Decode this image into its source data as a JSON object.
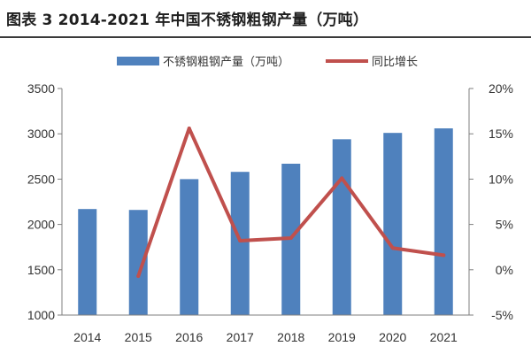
{
  "title": "图表 3 2014-2021 年中国不锈钢粗钢产量（万吨）",
  "colors": {
    "bar": "#4f81bd",
    "line": "#c0504d",
    "axis": "#7f7f7f",
    "text": "#333333"
  },
  "chart_data": {
    "type": "bar",
    "categories": [
      "2014",
      "2015",
      "2016",
      "2017",
      "2018",
      "2019",
      "2020",
      "2021"
    ],
    "series": [
      {
        "name": "不锈钢粗钢产量（万吨）",
        "type": "bar",
        "axis": "left",
        "values": [
          2170,
          2160,
          2500,
          2580,
          2670,
          2940,
          3010,
          3060
        ]
      },
      {
        "name": "同比增长",
        "type": "line",
        "axis": "right",
        "values": [
          null,
          -0.7,
          15.6,
          3.2,
          3.5,
          10.1,
          2.4,
          1.6
        ]
      }
    ],
    "y_left": {
      "min": 1000,
      "max": 3500,
      "ticks": [
        1000,
        1500,
        2000,
        2500,
        3000,
        3500
      ],
      "tick_labels": [
        "1000",
        "1500",
        "2000",
        "2500",
        "3000",
        "3500"
      ]
    },
    "y_right": {
      "min": -5,
      "max": 20,
      "ticks": [
        -5,
        0,
        5,
        10,
        15,
        20
      ],
      "tick_labels": [
        "-5%",
        "0%",
        "5%",
        "10%",
        "15%",
        "20%"
      ]
    },
    "legend": {
      "position": "top-center"
    },
    "grid": false
  }
}
